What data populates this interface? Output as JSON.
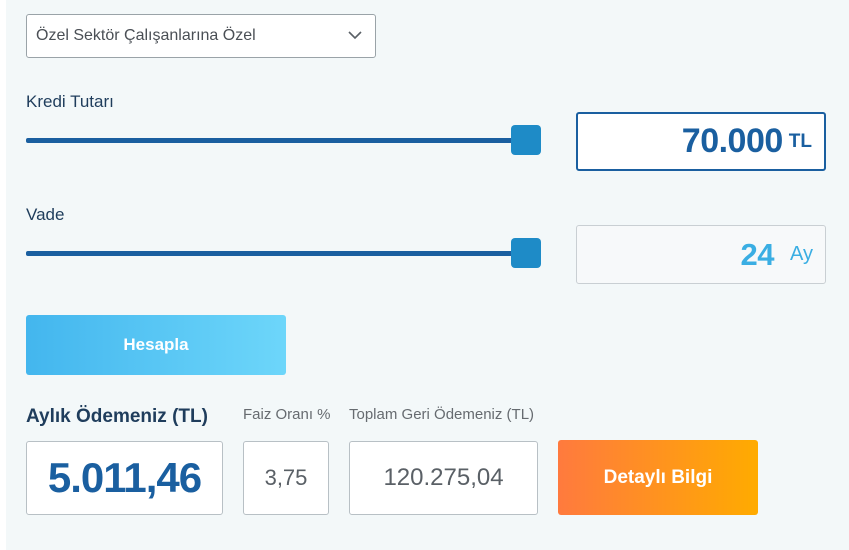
{
  "dropdown": {
    "selected": "Özel Sektör Çalışanlarına Özel"
  },
  "loan": {
    "label": "Kredi Tutarı",
    "value": "70.000",
    "unit": "TL",
    "slider_fraction": 1.0
  },
  "term": {
    "label": "Vade",
    "value": "24",
    "unit": "Ay",
    "slider_fraction": 1.0
  },
  "calculate_button": "Hesapla",
  "results": {
    "monthly_label": "Aylık Ödemeniz (TL)",
    "monthly_value": "5.011,46",
    "rate_label": "Faiz Oranı %",
    "rate_value": "3,75",
    "total_label": "Toplam Geri Ödemeniz (TL)",
    "total_value": "120.275,04"
  },
  "detail_button": "Detaylı Bilgi",
  "colors": {
    "primary": "#1a5fa0",
    "slider_thumb": "#1e8bc7",
    "calc_button": "#43b6ee",
    "detail_button": "#ff8c2a",
    "term_value": "#3aaee3"
  }
}
